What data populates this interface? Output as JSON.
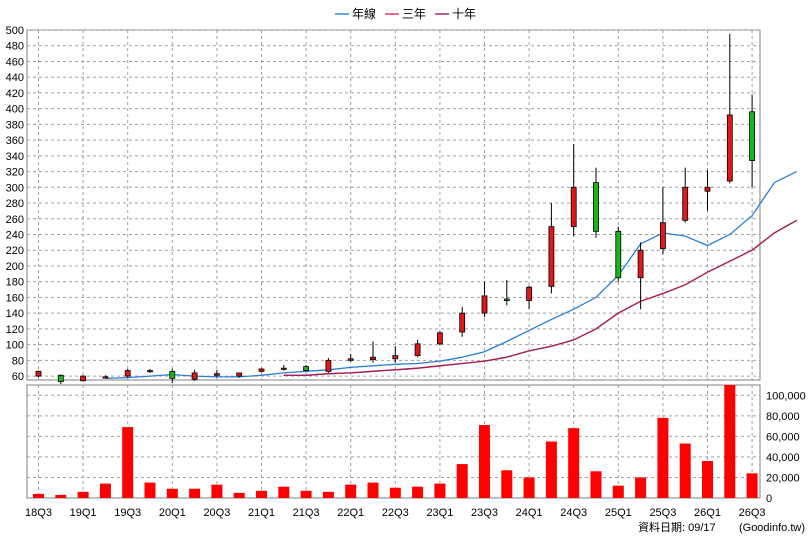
{
  "chart_data": {
    "type": "candlestick+line+bar",
    "legend": {
      "placement": "top-center",
      "items": [
        {
          "name": "年線",
          "color": "#2b7fd4"
        },
        {
          "name": "三年",
          "color": "#e0305c"
        },
        {
          "name": "十年",
          "color": "#a0205c"
        }
      ]
    },
    "price_axis": {
      "ylim": [
        55,
        500
      ],
      "ticks": [
        60,
        80,
        100,
        120,
        140,
        160,
        180,
        200,
        220,
        240,
        260,
        280,
        300,
        320,
        340,
        360,
        380,
        400,
        420,
        440,
        460,
        480,
        500
      ],
      "side": "left"
    },
    "volume_axis": {
      "ylim": [
        0,
        110000
      ],
      "ticks": [
        0,
        20000,
        40000,
        60000,
        80000,
        100000
      ],
      "tick_labels": [
        "0",
        "20,000",
        "40,000",
        "60,000",
        "80,000",
        "100,000"
      ],
      "side": "right"
    },
    "x_tick_labels": [
      "18Q3",
      "19Q1",
      "19Q3",
      "20Q1",
      "20Q3",
      "21Q1",
      "21Q3",
      "22Q1",
      "22Q3",
      "23Q1",
      "23Q3",
      "24Q1",
      "24Q3",
      "25Q1",
      "25Q3",
      "26Q1",
      "26Q3"
    ],
    "grid": true,
    "candles": [
      {
        "period": "18Q3",
        "open": 60,
        "high": 67,
        "low": 58,
        "close": 66
      },
      {
        "period": "18Q4",
        "open": 61,
        "high": 62,
        "low": 50,
        "close": 53
      },
      {
        "period": "19Q1",
        "open": 54,
        "high": 61,
        "low": 53,
        "close": 60
      },
      {
        "period": "19Q2",
        "open": 58,
        "high": 61,
        "low": 57,
        "close": 59
      },
      {
        "period": "19Q3",
        "open": 60,
        "high": 69,
        "low": 58,
        "close": 67
      },
      {
        "period": "19Q4",
        "open": 66,
        "high": 69,
        "low": 64,
        "close": 67
      },
      {
        "period": "20Q1",
        "open": 66,
        "high": 69,
        "low": 51,
        "close": 57
      },
      {
        "period": "20Q2",
        "open": 56,
        "high": 68,
        "low": 54,
        "close": 64
      },
      {
        "period": "20Q3",
        "open": 61,
        "high": 68,
        "low": 58,
        "close": 63
      },
      {
        "period": "20Q4",
        "open": 60,
        "high": 64,
        "low": 58,
        "close": 64
      },
      {
        "period": "21Q1",
        "open": 66,
        "high": 70,
        "low": 65,
        "close": 69
      },
      {
        "period": "21Q2",
        "open": 69,
        "high": 74,
        "low": 67,
        "close": 70
      },
      {
        "period": "21Q3",
        "open": 72,
        "high": 74,
        "low": 66,
        "close": 67
      },
      {
        "period": "21Q4",
        "open": 66,
        "high": 83,
        "low": 64,
        "close": 80
      },
      {
        "period": "22Q1",
        "open": 80,
        "high": 88,
        "low": 78,
        "close": 82
      },
      {
        "period": "22Q2",
        "open": 81,
        "high": 104,
        "low": 77,
        "close": 84
      },
      {
        "period": "22Q3",
        "open": 82,
        "high": 98,
        "low": 77,
        "close": 86
      },
      {
        "period": "22Q4",
        "open": 86,
        "high": 106,
        "low": 84,
        "close": 101
      },
      {
        "period": "23Q1",
        "open": 101,
        "high": 117,
        "low": 99,
        "close": 115
      },
      {
        "period": "23Q2",
        "open": 116,
        "high": 148,
        "low": 110,
        "close": 140
      },
      {
        "period": "23Q3",
        "open": 140,
        "high": 180,
        "low": 135,
        "close": 162
      },
      {
        "period": "23Q4",
        "open": 158,
        "high": 182,
        "low": 150,
        "close": 156
      },
      {
        "period": "24Q1",
        "open": 156,
        "high": 175,
        "low": 145,
        "close": 173
      },
      {
        "period": "24Q2",
        "open": 174,
        "high": 280,
        "low": 165,
        "close": 250
      },
      {
        "period": "24Q3",
        "open": 250,
        "high": 355,
        "low": 238,
        "close": 300
      },
      {
        "period": "24Q4",
        "open": 306,
        "high": 325,
        "low": 236,
        "close": 244
      },
      {
        "period": "25Q1",
        "open": 244,
        "high": 250,
        "low": 180,
        "close": 185
      },
      {
        "period": "25Q2",
        "open": 185,
        "high": 230,
        "low": 145,
        "close": 220
      },
      {
        "period": "25Q3",
        "open": 222,
        "high": 300,
        "low": 215,
        "close": 255
      },
      {
        "period": "25Q4",
        "open": 258,
        "high": 325,
        "low": 255,
        "close": 300
      },
      {
        "period": "26Q1",
        "open": 295,
        "high": 322,
        "low": 270,
        "close": 300
      },
      {
        "period": "26Q2",
        "open": 308,
        "high": 495,
        "low": 305,
        "close": 392
      },
      {
        "period": "26Q3",
        "open": 396,
        "high": 418,
        "low": 300,
        "close": 334
      }
    ],
    "series": [
      {
        "name": "年線",
        "color": "#2b7fd4",
        "start_index": 3,
        "values": [
          57,
          58,
          60,
          62,
          60,
          59,
          59,
          61,
          64,
          66,
          68,
          71,
          73,
          75,
          76,
          79,
          84,
          91,
          104,
          118,
          132,
          145,
          160,
          188,
          228,
          242,
          238,
          226,
          240,
          264,
          306,
          320
        ]
      },
      {
        "name": "三年",
        "color": "#e0305c",
        "start_index": 11,
        "values": [
          61,
          61,
          63,
          64,
          66,
          68,
          70,
          73,
          76,
          79,
          84,
          92,
          98,
          106,
          120,
          140,
          155,
          165,
          176,
          192,
          206,
          220,
          242,
          258
        ]
      },
      {
        "name": "十年",
        "color": "#a0205c",
        "start_index": 11,
        "values": [
          61,
          61,
          63,
          64,
          66,
          68,
          70,
          73,
          76,
          79,
          84,
          92,
          98,
          106,
          120,
          140,
          155,
          165,
          176,
          192,
          206,
          220,
          242,
          258
        ]
      }
    ],
    "volume": [
      4000,
      3000,
      6000,
      14000,
      69000,
      15000,
      9000,
      9000,
      13000,
      5000,
      7000,
      11000,
      7000,
      6000,
      13000,
      15000,
      10000,
      11000,
      14000,
      33000,
      71000,
      27000,
      20000,
      55000,
      68000,
      26000,
      12000,
      20000,
      78000,
      53000,
      36000,
      110000,
      24000
    ],
    "footer": {
      "label": "資料日期: 09/17",
      "source": "(Goodinfo.tw)"
    }
  }
}
